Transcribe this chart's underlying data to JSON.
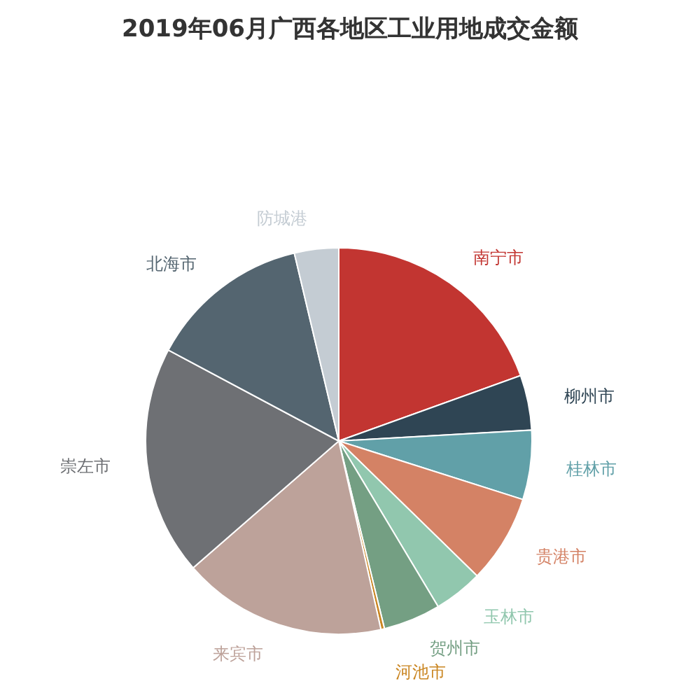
{
  "chart_data": {
    "type": "pie",
    "title": "2019年06月广西各地区工业用地成交金额",
    "categories": [
      "南宁市",
      "柳州市",
      "桂林市",
      "贵港市",
      "玉林市",
      "贺州市",
      "河池市",
      "来宾市",
      "崇左市",
      "北海市",
      "防城港"
    ],
    "values": [
      19.5,
      4.6,
      5.8,
      7.4,
      4.1,
      4.8,
      0.3,
      17.1,
      19.2,
      13.5,
      3.7
    ],
    "colors": [
      "#c23531",
      "#2f4554",
      "#61a0a8",
      "#d48265",
      "#91c7ae",
      "#749f83",
      "#ca8622",
      "#bda29a",
      "#6e7074",
      "#546570",
      "#c4ccd3"
    ],
    "legend": false
  }
}
